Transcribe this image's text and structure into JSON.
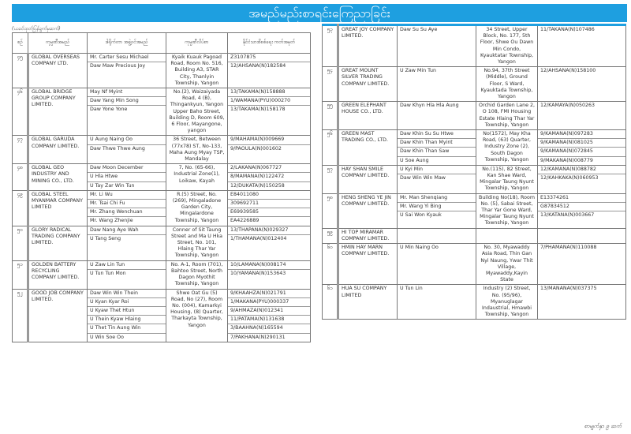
{
  "title": "အမည်မည်းစာရင်းကြေညာခြင်း",
  "subtitle": "(ယခင်ထုတ်ပြန်ချက်မှဆက်)",
  "headers": [
    "စဉ်",
    "ကုမ္ပဏီအမည်",
    "ဒါရိုက်တာ အဖွဲ့ဝင်အမည်",
    "ကုမ္ပဏီလိပ်စာ",
    "နိုင်ငံသားစိစစ်ရေး ကတ်အမှတ်"
  ],
  "left_rows": [
    {
      "no": "၄၅",
      "company": "GLOBAL OVERSEAS COMPANY LTD.",
      "directors": [
        "Mr. Carter Sesu Michael",
        "Daw Maw Precious Joy"
      ],
      "address": "Kyaik Kuauk Pagoad Road, Room No. 516, Building A3, STAR City, Thanlyin Township, Yangon",
      "ids": [
        "Z3107875",
        "12/AHSANA(N)182584"
      ]
    },
    {
      "no": "၄၆",
      "company": "GLOBAL BRIDGE GROUP COMPANY LIMITED.",
      "directors": [
        "May Nf Myint",
        "Daw Yang Min Song",
        "Daw Yone Yone"
      ],
      "address": "No.(2), Waizaiyada Road, 4 (B), Thingankyun, Yangon Upper Baho Street, Building D, Room 609, 6 Floor, Mayangone, yangon",
      "ids": [
        "13/TAKAMA(N)158888",
        "1/WAMANA(PYU)000270",
        "13/TAKAMA(N)158178"
      ]
    },
    {
      "no": "၄၇",
      "company": "GLOBAL GARUDA COMPANY LIMITED.",
      "directors": [
        "U Aung Naing Oo",
        "Daw Thwe Thwe Aung"
      ],
      "address": "36 Street, Between (77x78) ST, No-133, Maha Aung Myay TSP, Mandalay",
      "ids": [
        "9/MAHAMA(N)009669",
        "9/PAOULA(N)001602"
      ]
    },
    {
      "no": "၄၈",
      "company": "GLOBAL GEO INDUSTRY AND MINING CO., LTD.",
      "directors": [
        "Daw Moon December",
        "U Hla Htwe",
        "U Tay Zar Win Tun"
      ],
      "address": "7, No. (65-66), Industrial Zone(1), Loikaw, Kayah",
      "ids": [
        "2/LAKANA(N)067727",
        "8/MAMANA(N)122472",
        "12/DUKATA(N)150258"
      ]
    },
    {
      "no": "၄၉",
      "company": "GLOBAL STEEL MYANMAR COMPANY LIMITED",
      "directors": [
        "Mr. Li Wu",
        "Mr. Tsai Chi Fu",
        "Mr. Zhang Wenchuan",
        "Mr. Wang Zhenjie"
      ],
      "address": "R.(5) Street, No. (269), Mingaladone Garden City, Mingalardone Township, Yangon",
      "ids": [
        "E84011080",
        "309692711",
        "E69939585",
        "EA4226889"
      ]
    },
    {
      "no": "၅၀",
      "company": "GLORY RADICAL TRADING COMPANY LIMITED.",
      "directors": [
        "Daw Nang Aye Wah",
        "U Tang Seng"
      ],
      "address": "Conner of Sit Taung Street and Ma U Hka Street, No. 101, Hlaing Thar Yar Township, Yangon",
      "ids": [
        "13/THAPANA(N)029327",
        "1/THAMANA(N)012404"
      ]
    },
    {
      "no": "၅၁",
      "company": "GOLDEN BATTERY RECYCLING COMPANY LIMITED.",
      "directors": [
        "U Zaw Lin Tun",
        "U Tun Tun Mon"
      ],
      "address": "No. A-1, Room (701), Bahtoo Street, North Dagon Myothit Township, Yangon",
      "ids": [
        "10/LAMANA(N)008174",
        "10/YAMANA(N)153643"
      ]
    },
    {
      "no": "၅၂",
      "company": "GOOD JOB COMPANY LIMITED.",
      "directors": [
        "Daw Win Win Thein",
        "U Kyan Kyar Roi",
        "U Kyaw Thet Htun",
        "U Thein Kyaw Hlaing",
        "U Thet Tin Aung Win",
        "U Win Soe Oo"
      ],
      "address": "Shwe Oat Gu (5) Road, No (27), Room No. (004), Kamarkyi Housing, (8) Quarter, Tharkayta Township, Yangon",
      "ids": [
        "9/KHAAHZA(N)021791",
        "1/MAKANA(PYU)000337",
        "9/AHMAZA(N)012341",
        "11/PATAMA(N)131638",
        "3/BAAHNA(N)165594",
        "7/PAKHANA(N)290131"
      ]
    }
  ],
  "right_rows": [
    {
      "no": "၅၃",
      "company": "GREAT JOY COMPANY LIMITED.",
      "directors": [
        "Daw Su Su Aye"
      ],
      "address": "34 Street, Upper Block, No. 177, 5th Floor, Shwe Ou Dawn Min Condo, Kyauktatar Township, Yangon",
      "ids": [
        "11/TAKANA(N)107486"
      ]
    },
    {
      "no": "၅၄",
      "company": "GREAT MOUNT SILVER TRADING COMPANY LIMITED.",
      "directors": [
        "U Zaw Min Tun"
      ],
      "address": "No.94, 37th Street (Middle), Ground Floor, S Ward, Kyauktada Township, Yangon",
      "ids": [
        "12/AHSANA(N)158100"
      ]
    },
    {
      "no": "၅၅",
      "company": "GREEN ELEPHANT HOUSE CO., LTD.",
      "directors": [
        "Daw Khyn Hla Hla Aung"
      ],
      "address": "Orchid Garden Lane 2, O 108, FMI Housing Estate Hlaing Thar Yar Township, Yangon",
      "ids": [
        "12/KAMAYA(N)050263"
      ]
    },
    {
      "no": "၅၆",
      "company": "GREEN MAST TRADING CO., LTD.",
      "directors": [
        "Daw Khin Su Su Htwe",
        "Daw Khin Than Myint",
        "Daw Khin Than Saw",
        "U Soe Aung"
      ],
      "address": "No(1572), May Kha Road, (63) Quarter, Industry Zone (2), South Dagon Township, Yangon",
      "ids": [
        "9/KAMANA(N)097283",
        "9/KAMANA(N)081025",
        "9/KAMANA(N)072845",
        "9/MAKANA(N)008779"
      ]
    },
    {
      "no": "၅၇",
      "company": "HAY SHAN SMILE COMPANY LIMITED.",
      "directors": [
        "U Kyi Min",
        "Daw Win Win Maw"
      ],
      "address": "No.(115), 82 Street, Kan Shae Ward, Mingalar Taung Nyunt Township, Yangon",
      "ids": [
        "12/KAMANA(N)088782",
        "12/KAHKAKA(N)060953"
      ]
    },
    {
      "no": "၅၈",
      "company": "HENG SHENG YE JIN COMPANY LIMITED.",
      "directors": [
        "Mr. Man Shenqiang",
        "Mr. Wang Yi Bing",
        "U Sai Won Kyauk"
      ],
      "address": "Building No(18), Room No. (5), Sabai Street, Thar Yar Gone Ward, Mingalar Taung Nyunt Township, Yangon",
      "ids": [
        "E13374261",
        "G87834512",
        "13/KATANA(N)003667"
      ]
    },
    {
      "no": "၅၉",
      "company": "HI TOP MIRAMAR COMPANY LIMITED.",
      "directors": [
        ""
      ],
      "address": "",
      "ids": [
        ""
      ]
    },
    {
      "no": "၆၀",
      "company": "HMIN HAY MARN COMPANY LIMITED.",
      "directors": [
        "U Min Naing Oo"
      ],
      "address": "No. 30, Myawaddy Asia Road, Thin Gan Nyi Naung, Ywar Thit Village, Myawaddy,Kayin State",
      "ids": [
        "7/PHAMANA(N)110088"
      ]
    },
    {
      "no": "၆၁",
      "company": "HUA SU COMPANY LIMITED",
      "directors": [
        "U Tun Lin"
      ],
      "address": "Industry (2) Street, No. (95/96), Myanuglagar Indaustrial, Hmawbi Township, Yangon",
      "ids": [
        "13/MANANA(N)037375"
      ]
    }
  ],
  "footer": "စာမျက်နှာ ၉ ဆက်"
}
